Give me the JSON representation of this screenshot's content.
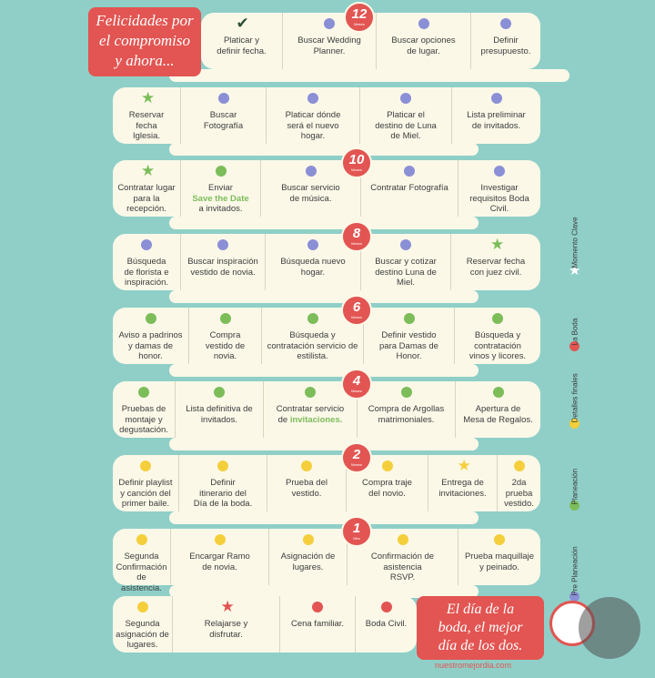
{
  "colors": {
    "accent": "#e25552",
    "background": "#8fcfc8",
    "panel": "#fbf8e8",
    "pre_planeacion": "#8b8fd6",
    "planeacion": "#7cbd5a",
    "detalles_finales": "#f4cf3b",
    "la_boda": "#e25552",
    "momento_clave": "#7cbd5a"
  },
  "intro": {
    "line1": "Felicidades por",
    "line2": "el compromiso",
    "line3": "y ahora..."
  },
  "outro": {
    "line1": "El día de la",
    "line2": "boda, el mejor",
    "line3": "día de los dos."
  },
  "website": "nuestromejordia.com",
  "legend": [
    {
      "label": "Pre Planeación",
      "color": "#8b8fd6",
      "type": "dot"
    },
    {
      "label": "Planeación",
      "color": "#7cbd5a",
      "type": "dot"
    },
    {
      "label": "Detalles finales",
      "color": "#f4cf3b",
      "type": "dot"
    },
    {
      "label": "La Boda",
      "color": "#e25552",
      "type": "dot"
    },
    {
      "label": "Momento Clave",
      "color": "#ffffff",
      "type": "star"
    }
  ],
  "rows": [
    {
      "badge": {
        "number": "12",
        "unit": "Meses"
      },
      "tasks": [
        {
          "lines": [
            "Platicar y",
            "definir fecha."
          ],
          "marker": "check"
        },
        {
          "lines": [
            "Buscar Wedding",
            "Planner."
          ],
          "marker": "pre"
        },
        {
          "lines": [
            "Buscar opciones",
            "de lugar."
          ],
          "marker": "pre"
        },
        {
          "lines": [
            "Definir",
            "presupuesto."
          ],
          "marker": "pre"
        }
      ]
    },
    {
      "tasks": [
        {
          "lines": [
            "Reservar",
            "fecha",
            "Iglesia."
          ],
          "marker": "star-green"
        },
        {
          "lines": [
            "Buscar",
            "Fotografía"
          ],
          "marker": "pre"
        },
        {
          "lines": [
            "Platicar dónde",
            "será el nuevo",
            "hogar."
          ],
          "marker": "pre"
        },
        {
          "lines": [
            "Platicar el",
            "destino de Luna",
            "de Miel."
          ],
          "marker": "pre"
        },
        {
          "lines": [
            "Lista preliminar",
            "de invitados."
          ],
          "marker": "pre"
        }
      ]
    },
    {
      "badge": {
        "number": "10",
        "unit": "Meses"
      },
      "tasks": [
        {
          "lines": [
            "Contratar lugar",
            "para la",
            "recepción."
          ],
          "marker": "star-green"
        },
        {
          "lines": [
            "Enviar",
            "Save the Date",
            "a invitados."
          ],
          "marker": "plan",
          "hl": 1
        },
        {
          "lines": [
            "Buscar servicio",
            "de música."
          ],
          "marker": "pre"
        },
        {
          "lines": [
            "Contratar Fotografía"
          ],
          "marker": "pre"
        },
        {
          "lines": [
            "Investigar",
            "requisitos Boda",
            "Civil."
          ],
          "marker": "pre"
        }
      ]
    },
    {
      "badge": {
        "number": "8",
        "unit": "Meses"
      },
      "tasks": [
        {
          "lines": [
            "Búsqueda",
            "de florista  e",
            "inspiración."
          ],
          "marker": "pre"
        },
        {
          "lines": [
            "Buscar inspiración",
            "vestido de novia."
          ],
          "marker": "pre"
        },
        {
          "lines": [
            "Búsqueda nuevo",
            "hogar."
          ],
          "marker": "pre"
        },
        {
          "lines": [
            "Buscar y cotizar",
            "destino Luna de",
            "Miel."
          ],
          "marker": "pre"
        },
        {
          "lines": [
            "Reservar fecha",
            "con juez civil."
          ],
          "marker": "star-green"
        }
      ]
    },
    {
      "badge": {
        "number": "6",
        "unit": "Meses"
      },
      "tasks": [
        {
          "lines": [
            "Aviso a padrinos",
            "y damas de",
            "honor."
          ],
          "marker": "plan"
        },
        {
          "lines": [
            "Compra",
            "vestido de",
            "novia."
          ],
          "marker": "plan"
        },
        {
          "lines": [
            "Búsqueda y",
            "contratación servicio de",
            "estilista."
          ],
          "marker": "plan"
        },
        {
          "lines": [
            "Definir vestido",
            "para Damas de",
            "Honor."
          ],
          "marker": "plan"
        },
        {
          "lines": [
            "Búsqueda y",
            "contratación",
            "vinos y licores."
          ],
          "marker": "plan"
        }
      ]
    },
    {
      "badge": {
        "number": "4",
        "unit": "Meses"
      },
      "tasks": [
        {
          "lines": [
            "Pruebas de",
            "montaje y",
            "degustación."
          ],
          "marker": "plan"
        },
        {
          "lines": [
            "Lista definitiva de",
            "invitados."
          ],
          "marker": "plan"
        },
        {
          "lines": [
            "Contratar servicio",
            "de invitaciones."
          ],
          "marker": "plan",
          "hl_word": "invitaciones."
        },
        {
          "lines": [
            "Compra de Argollas",
            "matrimoniales."
          ],
          "marker": "plan"
        },
        {
          "lines": [
            "Apertura de",
            "Mesa de Regalos."
          ],
          "marker": "plan"
        }
      ]
    },
    {
      "badge": {
        "number": "2",
        "unit": "Meses"
      },
      "tasks": [
        {
          "lines": [
            "Definir playlist",
            "y canción del",
            "primer baile."
          ],
          "marker": "det"
        },
        {
          "lines": [
            "Definir",
            "itinerario del",
            "Día de la boda."
          ],
          "marker": "det"
        },
        {
          "lines": [
            "Prueba del",
            "vestido."
          ],
          "marker": "det"
        },
        {
          "lines": [
            "Compra traje",
            "del novio."
          ],
          "marker": "det"
        },
        {
          "lines": [
            "Entrega de",
            "invitaciones."
          ],
          "marker": "star-yellow"
        },
        {
          "lines": [
            "2da prueba",
            "vestido."
          ],
          "marker": "det"
        }
      ]
    },
    {
      "badge": {
        "number": "1",
        "unit": "Mes"
      },
      "tasks": [
        {
          "lines": [
            "Segunda",
            "Confirmación",
            "de asistencia."
          ],
          "marker": "det"
        },
        {
          "lines": [
            "Encargar Ramo",
            "de novia."
          ],
          "marker": "det"
        },
        {
          "lines": [
            "Asignación de",
            "lugares."
          ],
          "marker": "det"
        },
        {
          "lines": [
            "Confirmación de",
            "asistencia",
            "RSVP."
          ],
          "marker": "det"
        },
        {
          "lines": [
            "Prueba maquillaje",
            "y peinado."
          ],
          "marker": "det"
        }
      ]
    },
    {
      "tasks": [
        {
          "lines": [
            "Segunda",
            "asignación de",
            "lugares."
          ],
          "marker": "det"
        },
        {
          "lines": [
            "Relajarse y",
            "disfrutar."
          ],
          "marker": "star-red"
        },
        {
          "lines": [
            "Cena familiar."
          ],
          "marker": "boda"
        },
        {
          "lines": [
            "Boda Civil."
          ],
          "marker": "boda"
        }
      ]
    }
  ]
}
